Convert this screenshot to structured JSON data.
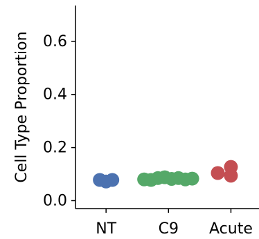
{
  "chart_data": {
    "type": "scatter",
    "ylabel": "Cell Type Proportion",
    "xlim": [
      -0.49,
      2.45
    ],
    "ylim": [
      -0.03,
      0.735
    ],
    "xticks": [
      {
        "value": 0,
        "label": "NT"
      },
      {
        "value": 1,
        "label": "C9"
      },
      {
        "value": 2,
        "label": "Acute"
      }
    ],
    "yticks": [
      {
        "value": 0,
        "label": "0.0"
      },
      {
        "value": 0.2,
        "label": "0.2"
      },
      {
        "value": 0.4,
        "label": "0.4"
      },
      {
        "value": 0.6,
        "label": "0.6"
      }
    ],
    "series": [
      {
        "color": "#4c72b0",
        "x": [
          -0.1,
          0.0,
          0.1
        ],
        "values": [
          0.078,
          0.072,
          0.078
        ]
      },
      {
        "color": "#55a868",
        "x": [
          0.61,
          0.72,
          0.83,
          0.94,
          1.05,
          1.16,
          1.27,
          1.38
        ],
        "values": [
          0.08,
          0.078,
          0.085,
          0.088,
          0.082,
          0.085,
          0.08,
          0.083
        ]
      },
      {
        "color": "#c44e52",
        "x": [
          1.79,
          2.0,
          2.0
        ],
        "values": [
          0.104,
          0.127,
          0.094
        ]
      }
    ]
  }
}
